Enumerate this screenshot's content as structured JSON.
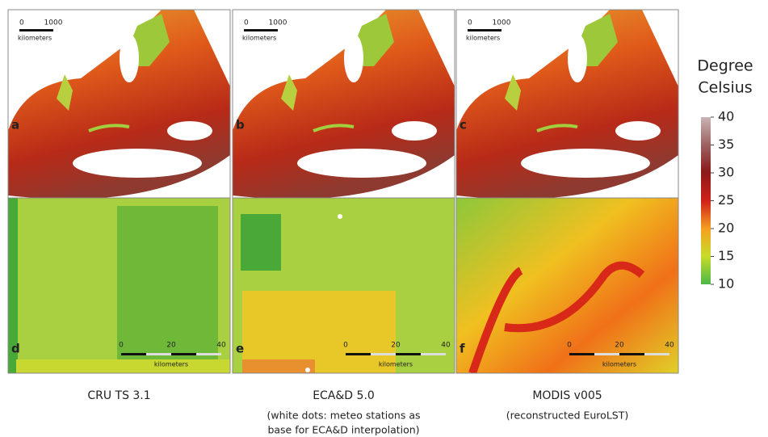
{
  "panels": [
    {
      "label": "a",
      "scale": {
        "labels": [
          "0",
          "1000"
        ],
        "unit": "kilometers"
      }
    },
    {
      "label": "b",
      "scale": {
        "labels": [
          "0",
          "1000"
        ],
        "unit": "kilometers"
      }
    },
    {
      "label": "c",
      "scale": {
        "labels": [
          "0",
          "1000"
        ],
        "unit": "kilometers"
      }
    },
    {
      "label": "d",
      "scale": {
        "labels": [
          "0",
          "20",
          "40"
        ],
        "unit": "kilometers"
      }
    },
    {
      "label": "e",
      "scale": {
        "labels": [
          "0",
          "20",
          "40"
        ],
        "unit": "kilometers"
      }
    },
    {
      "label": "f",
      "scale": {
        "labels": [
          "0",
          "20",
          "40"
        ],
        "unit": "kilometers"
      }
    }
  ],
  "columns": [
    {
      "caption": [
        "CRU TS 3.1"
      ]
    },
    {
      "caption": [
        "ECA&D 5.0",
        "(white dots: meteo stations as",
        "base for ECA&D interpolation)"
      ]
    },
    {
      "caption": [
        "MODIS v005",
        "(reconstructed EuroLST)"
      ]
    }
  ],
  "colorbar": {
    "title": [
      "Degree",
      "Celsius"
    ],
    "range": [
      10,
      40
    ],
    "ticks": [
      40,
      35,
      30,
      25,
      20,
      15,
      10
    ]
  }
}
